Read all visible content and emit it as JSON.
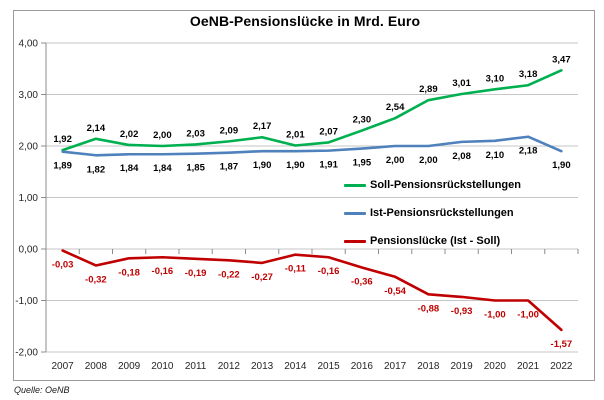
{
  "source": "Quelle: OeNB",
  "chart_data": {
    "type": "line",
    "title": "OeNB-Pensionslücke in Mrd. Euro",
    "xlabel": "",
    "ylabel": "",
    "ylim": [
      -2,
      4
    ],
    "grid": "horizontal",
    "legend_position": "inside-right",
    "categories": [
      "2007",
      "2008",
      "2009",
      "2010",
      "2011",
      "2012",
      "2013",
      "2014",
      "2015",
      "2016",
      "2017",
      "2018",
      "2019",
      "2020",
      "2021",
      "2022"
    ],
    "y_ticks": [
      {
        "value": 4,
        "label": "4,00"
      },
      {
        "value": 3,
        "label": "3,00"
      },
      {
        "value": 2,
        "label": "2,00"
      },
      {
        "value": 1,
        "label": "1,00"
      },
      {
        "value": 0,
        "label": "0,00"
      },
      {
        "value": -1,
        "label": "-1,00"
      },
      {
        "value": -2,
        "label": "-2,00"
      }
    ],
    "series": [
      {
        "name": "Soll-Pensionsrückstellungen",
        "color": "#00B050",
        "label_color": "#000000",
        "label_position": "above",
        "values": [
          1.92,
          2.14,
          2.02,
          2.0,
          2.03,
          2.09,
          2.17,
          2.01,
          2.07,
          2.3,
          2.54,
          2.89,
          3.01,
          3.1,
          3.18,
          3.47
        ],
        "labels": [
          "1,92",
          "2,14",
          "2,02",
          "2,00",
          "2,03",
          "2,09",
          "2,17",
          "2,01",
          "2,07",
          "2,30",
          "2,54",
          "2,89",
          "3,01",
          "3,10",
          "3,18",
          "3,47"
        ]
      },
      {
        "name": "Ist-Pensionsrückstellungen",
        "color": "#4F81BD",
        "label_color": "#000000",
        "label_position": "below",
        "values": [
          1.89,
          1.82,
          1.84,
          1.84,
          1.85,
          1.87,
          1.9,
          1.9,
          1.91,
          1.95,
          2.0,
          2.0,
          2.08,
          2.1,
          2.18,
          1.9
        ],
        "labels": [
          "1,89",
          "1,82",
          "1,84",
          "1,84",
          "1,85",
          "1,87",
          "1,90",
          "1,90",
          "1,91",
          "1,95",
          "2,00",
          "2,00",
          "2,08",
          "2,10",
          "2,18",
          "1,90"
        ]
      },
      {
        "name": "Pensionslücke (Ist - Soll)",
        "color": "#C00000",
        "label_color": "#C00000",
        "label_position": "below",
        "values": [
          -0.03,
          -0.32,
          -0.18,
          -0.16,
          -0.19,
          -0.22,
          -0.27,
          -0.11,
          -0.16,
          -0.36,
          -0.54,
          -0.88,
          -0.93,
          -1.0,
          -1.0,
          -1.57
        ],
        "labels": [
          "-0,03",
          "-0,32",
          "-0,18",
          "-0,16",
          "-0,19",
          "-0,22",
          "-0,27",
          "-0,11",
          "-0,16",
          "-0,36",
          "-0,54",
          "-0,88",
          "-0,93",
          "-1,00",
          "-1,00",
          "-1,57"
        ]
      }
    ]
  }
}
